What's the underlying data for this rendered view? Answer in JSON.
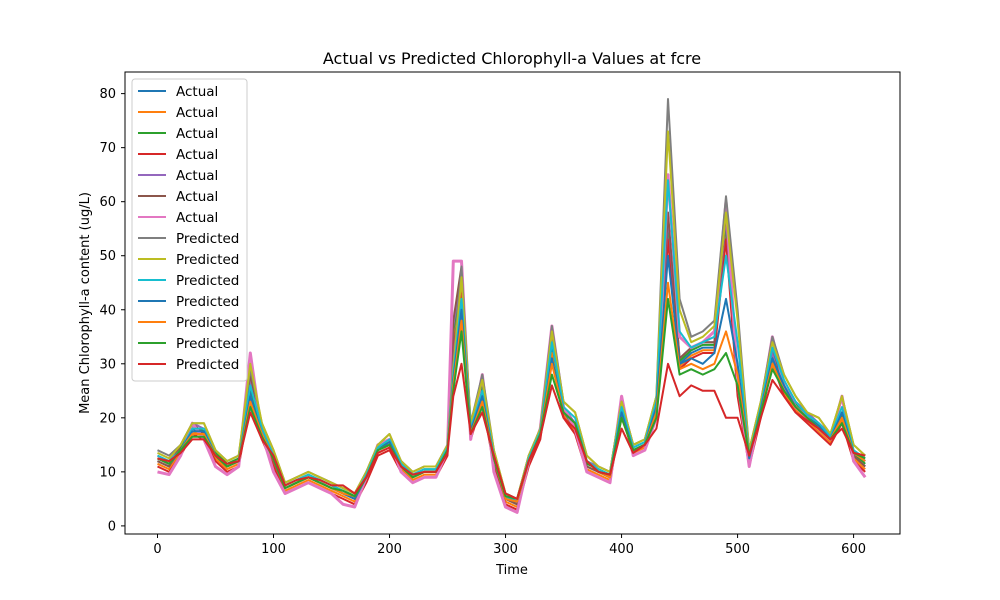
{
  "chart_data": {
    "type": "line",
    "title": "Actual vs Predicted Chlorophyll-a Values at fcre",
    "xlabel": "Time",
    "ylabel": "Mean Chlorophyll-a content (ug/L)",
    "xlim": [
      -28,
      640
    ],
    "ylim": [
      -1.5,
      84
    ],
    "xticks": [
      0,
      100,
      200,
      300,
      400,
      500,
      600
    ],
    "yticks": [
      0,
      10,
      20,
      30,
      40,
      50,
      60,
      70,
      80
    ],
    "legend_position": "upper-left",
    "grid": false,
    "x": [
      0,
      10,
      20,
      30,
      40,
      50,
      60,
      70,
      80,
      90,
      100,
      110,
      120,
      130,
      140,
      150,
      160,
      170,
      180,
      190,
      200,
      210,
      220,
      230,
      240,
      250,
      255,
      262,
      270,
      280,
      290,
      300,
      310,
      320,
      330,
      340,
      350,
      360,
      370,
      380,
      390,
      400,
      410,
      420,
      430,
      440,
      450,
      460,
      470,
      480,
      490,
      500,
      510,
      520,
      530,
      540,
      550,
      560,
      570,
      580,
      590,
      600,
      610
    ],
    "series": [
      {
        "name": "Actual",
        "color": "#1f77b4",
        "values": [
          12,
          11,
          14,
          18,
          17,
          13,
          11,
          12,
          25,
          17,
          12,
          7,
          8,
          9,
          8,
          7,
          6,
          5,
          9,
          14,
          15,
          11,
          9,
          10,
          10,
          14,
          35,
          45,
          17,
          25,
          12,
          5,
          4,
          12,
          17,
          33,
          21,
          18,
          11,
          10,
          9,
          22,
          14,
          15,
          22,
          55,
          30,
          32,
          33,
          33,
          55,
          25,
          12,
          21,
          31,
          25,
          22,
          20,
          18,
          16,
          20,
          13,
          11
        ]
      },
      {
        "name": "Actual",
        "color": "#ff7f0e",
        "values": [
          11.5,
          10.5,
          13.5,
          17.5,
          16.5,
          12.5,
          10.5,
          11.5,
          24,
          16.5,
          11.5,
          6.5,
          7.5,
          8.5,
          7.5,
          6.5,
          5.5,
          4.5,
          8.5,
          13.5,
          14.5,
          10.5,
          8.5,
          9.5,
          9.5,
          13.5,
          34,
          44,
          16.5,
          24,
          11.5,
          4.5,
          3.5,
          11.5,
          16.5,
          32,
          20.5,
          17.5,
          10.5,
          9.5,
          8.5,
          21.5,
          13.5,
          14.5,
          21.5,
          54,
          29.5,
          31.5,
          32.5,
          32.5,
          54,
          24.5,
          11.5,
          20.5,
          30.5,
          24.5,
          21.5,
          19.5,
          17.5,
          15.5,
          19.5,
          12.5,
          10.5
        ]
      },
      {
        "name": "Actual",
        "color": "#2ca02c",
        "values": [
          12.5,
          11.5,
          14.5,
          18.5,
          17.5,
          13.5,
          11.5,
          12.5,
          26,
          17.5,
          12.5,
          7.5,
          8.5,
          9.5,
          8.5,
          7.5,
          6.5,
          5.5,
          9.5,
          14.5,
          15.5,
          11.5,
          9.5,
          10.5,
          10.5,
          14.5,
          36,
          46,
          17.5,
          26,
          12.5,
          5.5,
          4.5,
          12.5,
          17.5,
          34,
          21.5,
          18.5,
          11.5,
          10.5,
          9.5,
          22.5,
          14.5,
          15.5,
          22.5,
          56,
          30.5,
          32.5,
          33.5,
          33.5,
          56,
          25.5,
          12.5,
          21.5,
          31.5,
          25.5,
          22.5,
          20.5,
          18.5,
          16.5,
          20.5,
          13.5,
          11.5
        ]
      },
      {
        "name": "Actual",
        "color": "#d62728",
        "values": [
          11,
          10,
          13,
          17,
          16,
          12,
          10,
          11,
          23,
          16,
          11,
          6,
          7,
          8,
          7,
          6,
          5,
          4,
          8,
          13,
          14,
          10,
          8,
          9,
          9,
          13,
          33,
          43,
          16,
          23,
          11,
          4,
          3,
          11,
          16,
          31,
          20,
          17,
          10,
          9,
          8,
          21,
          13,
          14,
          21,
          53,
          29,
          31,
          32,
          32,
          53,
          24,
          11,
          20,
          30,
          24,
          21,
          19,
          17,
          15,
          19,
          12,
          10
        ]
      },
      {
        "name": "Actual",
        "color": "#9467bd",
        "values": [
          13,
          12,
          15,
          19,
          18,
          14,
          12,
          13,
          27,
          18,
          13,
          8,
          9,
          10,
          9,
          8,
          7,
          6,
          10,
          15,
          16,
          12,
          10,
          11,
          11,
          15,
          37,
          47,
          18,
          27,
          13,
          6,
          5,
          13,
          18,
          35,
          22,
          19,
          12,
          11,
          10,
          23,
          15,
          16,
          23,
          57,
          31,
          33,
          34,
          34,
          57,
          26,
          13,
          22,
          32,
          26,
          23,
          21,
          19,
          17,
          21,
          14,
          12
        ]
      },
      {
        "name": "Actual",
        "color": "#8c564b",
        "values": [
          12,
          11,
          15,
          19,
          17,
          13,
          11,
          12,
          28,
          18,
          12,
          7,
          8,
          9,
          8,
          7,
          6,
          5,
          9,
          15,
          16,
          11,
          9,
          10,
          10,
          15,
          38,
          48,
          18,
          28,
          12,
          5,
          4,
          12,
          18,
          36,
          22,
          18,
          11,
          10,
          9,
          23,
          14,
          15,
          23,
          58,
          31,
          33,
          34,
          34,
          58,
          26,
          12,
          22,
          33,
          26,
          22,
          20,
          18,
          16,
          21,
          13,
          11
        ]
      },
      {
        "name": "Actual",
        "color": "#e377c2",
        "values": [
          10,
          9.5,
          13,
          19,
          16,
          11,
          9.5,
          11,
          32,
          17,
          10,
          6,
          7,
          8,
          7,
          6,
          4,
          3.5,
          9,
          15,
          16,
          10,
          8,
          9,
          9,
          14,
          49,
          49,
          16,
          28,
          10,
          3.5,
          2.5,
          12,
          18,
          37,
          22,
          18,
          10,
          9,
          8,
          24,
          13,
          14,
          20,
          65,
          35,
          33,
          34,
          36,
          60,
          27,
          11,
          22,
          35,
          26,
          22,
          20,
          18,
          16,
          24,
          12,
          9
        ]
      },
      {
        "name": "Predicted",
        "color": "#7f7f7f",
        "values": [
          14,
          13,
          15,
          19,
          19,
          14,
          12,
          13,
          29,
          19,
          14,
          8,
          9,
          10,
          9,
          8,
          7,
          6,
          10,
          15,
          17,
          12,
          10,
          11,
          11,
          15,
          30,
          48,
          19,
          28,
          14,
          6,
          5,
          13,
          18,
          37,
          23,
          21,
          13,
          11,
          10,
          23,
          15,
          16,
          24,
          79,
          42,
          35,
          36,
          38,
          61,
          40,
          14,
          23,
          35,
          28,
          24,
          21,
          20,
          17,
          24,
          15,
          13
        ]
      },
      {
        "name": "Predicted",
        "color": "#bcbd22",
        "values": [
          13.5,
          12.5,
          15,
          19,
          19,
          14,
          12,
          13,
          30,
          19,
          14,
          8,
          9,
          10,
          9,
          8,
          7,
          6,
          10,
          15,
          17,
          12,
          10,
          11,
          11,
          15,
          29,
          46,
          19,
          27,
          14,
          6,
          5,
          13,
          18,
          36,
          23,
          21,
          13,
          11,
          10,
          23,
          15,
          16,
          24,
          73,
          40,
          34,
          35,
          37,
          58,
          38,
          14,
          23,
          34,
          28,
          24,
          21,
          20,
          17,
          24,
          15,
          13
        ]
      },
      {
        "name": "Predicted",
        "color": "#17becf",
        "values": [
          13,
          12,
          14,
          18,
          18,
          13,
          11,
          12,
          26,
          18,
          13,
          7.5,
          8.5,
          9.5,
          8.5,
          7.5,
          6.5,
          5.5,
          9.5,
          14.5,
          16,
          11.5,
          9.5,
          10.5,
          10.5,
          14.5,
          28,
          42,
          18,
          25,
          13,
          5.5,
          4.5,
          12.5,
          17.5,
          34,
          22,
          20,
          12,
          10.5,
          9.5,
          22,
          14.5,
          15.5,
          23,
          64,
          36,
          33,
          34,
          35,
          50,
          34,
          13,
          22,
          33,
          27,
          23,
          20.5,
          19,
          16.5,
          22,
          14,
          12.5
        ]
      },
      {
        "name": "Predicted",
        "color": "#1f77b4",
        "values": [
          12.5,
          11.5,
          14,
          17.5,
          17.5,
          13,
          11,
          12,
          24,
          17,
          12.5,
          7,
          8,
          9,
          8,
          7,
          6,
          5,
          9,
          14,
          15.5,
          11,
          9,
          10,
          10,
          14,
          27,
          40,
          17.5,
          24,
          12.5,
          5,
          4.5,
          12,
          17,
          31,
          21,
          19,
          12,
          10,
          9,
          21,
          14,
          15,
          22,
          50,
          30,
          31,
          30,
          32,
          42,
          30,
          12.5,
          21.5,
          31,
          26,
          22,
          20,
          18.5,
          16,
          21,
          13.5,
          12
        ]
      },
      {
        "name": "Predicted",
        "color": "#ff7f0e",
        "values": [
          12.5,
          11.5,
          14,
          17,
          17,
          13,
          11,
          12,
          23,
          17,
          12.5,
          7,
          8,
          9,
          8,
          7,
          6,
          5.5,
          9,
          14,
          15,
          11,
          9,
          10,
          10,
          14,
          26,
          38,
          17,
          23,
          12.5,
          5,
          4.5,
          12,
          17,
          30,
          21,
          19,
          12,
          10,
          9,
          20,
          14,
          15,
          21,
          45,
          29,
          30,
          29,
          30,
          36,
          28,
          13,
          21,
          30,
          25,
          22,
          20,
          18,
          16,
          20,
          13.5,
          12
        ]
      },
      {
        "name": "Predicted",
        "color": "#2ca02c",
        "values": [
          12.5,
          11.5,
          14,
          16.5,
          16.5,
          13,
          11,
          12,
          22,
          16.5,
          12.5,
          7,
          8,
          9,
          8,
          7,
          6.5,
          5.5,
          9,
          14,
          15,
          11,
          9,
          10,
          10,
          14,
          25,
          36,
          17,
          22,
          12.5,
          5.5,
          5,
          12,
          17,
          28,
          21,
          19,
          12,
          10,
          9.5,
          20,
          14,
          15,
          20,
          42,
          28,
          29,
          28,
          29,
          32,
          26,
          13,
          21,
          29,
          25,
          22,
          20,
          18,
          16,
          19,
          13.5,
          12.5
        ]
      },
      {
        "name": "Predicted",
        "color": "#d62728",
        "values": [
          12.5,
          12,
          13.5,
          16,
          16,
          13,
          11.5,
          12,
          21,
          16,
          13,
          7.5,
          8.5,
          9,
          8.5,
          7.5,
          7.5,
          6,
          9,
          13.5,
          14.5,
          11,
          9.5,
          10,
          10,
          13.5,
          24,
          30,
          17,
          21,
          13,
          6,
          5,
          12,
          16.5,
          26,
          20,
          18,
          12,
          10,
          9.5,
          18,
          13.5,
          15,
          18,
          30,
          24,
          26,
          25,
          25,
          20,
          20,
          13,
          20,
          27,
          24,
          21,
          19.5,
          18,
          16,
          18,
          13.5,
          13
        ]
      }
    ]
  }
}
